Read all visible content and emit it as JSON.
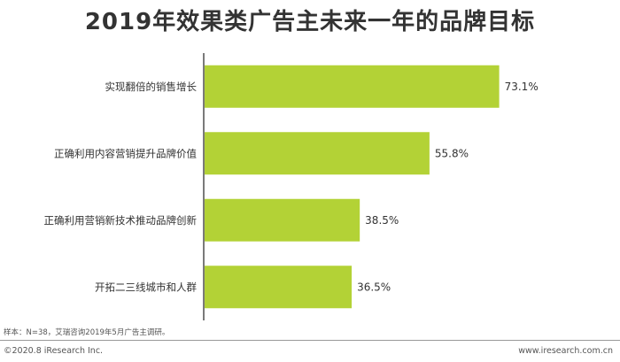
{
  "title": "2019年效果类广告主未来一年的品牌目标",
  "chart_data": {
    "type": "bar",
    "orientation": "horizontal",
    "title": "2019年效果类广告主未来一年的品牌目标",
    "categories": [
      "实现翻倍的销售增长",
      "正确利用内容营销提升品牌价值",
      "正确利用营销新技术推动品牌创新",
      "开拓二三线城市和人群"
    ],
    "values": [
      73.1,
      55.8,
      38.5,
      36.5
    ],
    "value_labels": [
      "73.1%",
      "55.8%",
      "38.5%",
      "36.5%"
    ],
    "unit": "%",
    "xlim": [
      0,
      100
    ],
    "grid": false,
    "bar_color": "#b3d236"
  },
  "note": "样本：N=38，艾瑞咨询2019年5月广告主调研。",
  "copyright": "©2020.8 iResearch Inc.",
  "site": "www.iresearch.com.cn",
  "colors": {
    "bar": "#b3d236",
    "axis": "#222222",
    "text": "#333333"
  }
}
